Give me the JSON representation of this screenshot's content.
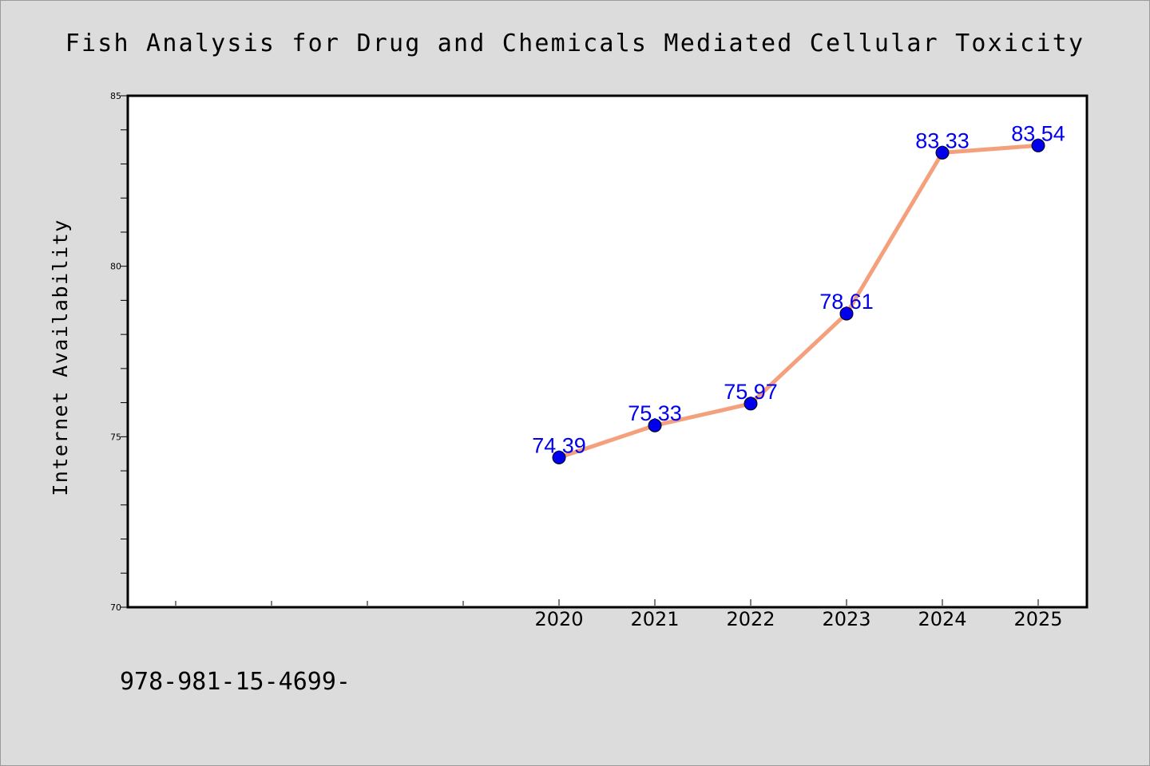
{
  "chart_data": {
    "type": "line",
    "title": "Fish Analysis for Drug and Chemicals Mediated Cellular Toxicity",
    "ylabel": "Internet Availability",
    "xlabel": "",
    "x": [
      "2020",
      "2021",
      "2022",
      "2023",
      "2024",
      "2025"
    ],
    "values": [
      74.39,
      75.33,
      75.97,
      78.61,
      83.33,
      83.54
    ],
    "data_labels": [
      "74.39",
      "75.33",
      "75.97",
      "78.61",
      "83.33",
      "83.54"
    ],
    "ylim": [
      70,
      85
    ],
    "yticks": [
      "70",
      "75",
      "80",
      "85"
    ],
    "grid": false,
    "legend": "none",
    "line_color": "#f4a07c",
    "marker_color": "#0000ee",
    "label_color": "#0000ee"
  },
  "footer_text": "978-981-15-4699-"
}
